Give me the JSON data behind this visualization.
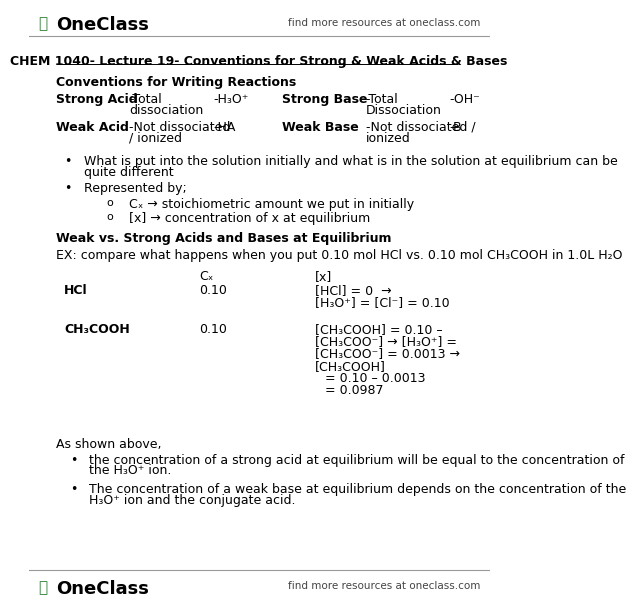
{
  "bg_color": "#ffffff",
  "header_logo_text": "OneClass",
  "header_right_text": "find more resources at oneclass.com",
  "footer_logo_text": "OneClass",
  "footer_right_text": "find more resources at oneclass.com",
  "title": "CHEM 1040- Lecture 19- Conventions for Strong & Weak Acids & Bases",
  "section1_heading": "Conventions for Writing Reactions",
  "section2_heading": "Weak vs. Strong Acids and Bases at Equilibrium",
  "example_text": "EX: compare what happens when you put 0.10 mol HCl vs. 0.10 mol CH₃COOH in 1.0L H₂O",
  "conclusion_text": "As shown above,",
  "bullet1_line1": "What is put into the solution initially and what is in the solution at equilibrium can be",
  "bullet1_line2": "quite different",
  "bullet2": "Represented by;",
  "sub1": "Cₓ → stoichiometric amount we put in initially",
  "sub2": "[x] → concentration of x at equilibrium",
  "cx_header": "Cₓ",
  "x_header": "[x]",
  "hcl_label": "HCl",
  "hcl_cx": "0.10",
  "hcl_x1": "[HCl] = 0  →",
  "hcl_x2": "[H₃O⁺] = [Cl⁻] = 0.10",
  "ac_label": "CH₃COOH",
  "ac_cx": "0.10",
  "ac_x1": "[CH₃COOH] = 0.10 –",
  "ac_x2": "[CH₃COO⁻] → [H₃O⁺] =",
  "ac_x3": "[CH₃COO⁻] = 0.0013 →",
  "ac_x4": "[CH₃COOH]",
  "ac_x5": "= 0.10 – 0.0013",
  "ac_x6": "= 0.0987",
  "bc1_line1": "the concentration of a strong acid at equilibrium will be equal to the concentration of",
  "bc1_line2": "the H₃O⁺ ion.",
  "bc2_line1": "The concentration of a weak base at equilibrium depends on the concentration of the",
  "bc2_line2": "H₃O⁺ ion and the conjugate acid.",
  "strong_acid": "Strong Acid",
  "strong_acid_d1": "-Total",
  "strong_acid_d2": "dissociation",
  "strong_acid_h3o": "-H₃O⁺",
  "strong_base": "Strong Base",
  "strong_base_d1": "-Total",
  "strong_base_d2": "Dissociation",
  "strong_base_oh": "-OH⁻",
  "weak_acid": "Weak Acid",
  "weak_acid_d1": "-Not dissociated",
  "weak_acid_d2": "/ ionized",
  "weak_acid_ha": "-HA",
  "weak_base": "Weak Base",
  "weak_base_d1": "-Not dissociated /",
  "weak_base_d2": "ionized",
  "weak_base_b": "-B"
}
